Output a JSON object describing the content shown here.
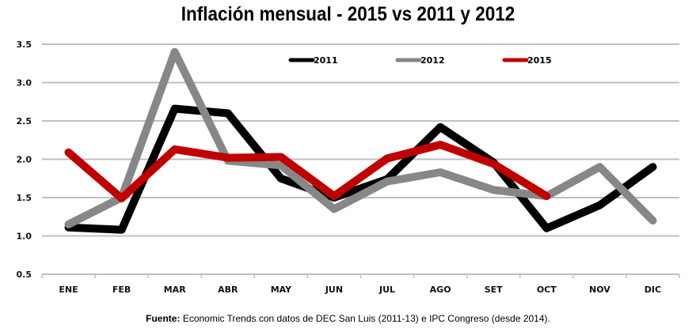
{
  "chart_data": {
    "type": "line",
    "title": "Inflación mensual - 2015 vs 2011 y 2012",
    "xlabel": "",
    "ylabel": "",
    "categories": [
      "ENE",
      "FEB",
      "MAR",
      "ABR",
      "MAY",
      "JUN",
      "JUL",
      "AGO",
      "SET",
      "OCT",
      "NOV",
      "DIC"
    ],
    "ylim": [
      0.5,
      3.5
    ],
    "yticks": [
      "0.5",
      "1.0",
      "1.5",
      "2.0",
      "2.5",
      "3.0",
      "3.5"
    ],
    "ytick_values": [
      0.5,
      1.0,
      1.5,
      2.0,
      2.5,
      3.0,
      3.5
    ],
    "grid": true,
    "legend_position": "top-center",
    "series": [
      {
        "name": "2011",
        "color": "#000000",
        "values": [
          1.11,
          1.08,
          2.66,
          2.6,
          1.75,
          1.5,
          1.74,
          2.42,
          1.96,
          1.1,
          1.4,
          1.9
        ]
      },
      {
        "name": "2012",
        "color": "#878787",
        "values": [
          1.15,
          1.5,
          3.4,
          1.98,
          1.92,
          1.35,
          1.71,
          1.83,
          1.6,
          1.52,
          1.9,
          1.2
        ]
      },
      {
        "name": "2015",
        "color": "#c00000",
        "values": [
          2.09,
          1.49,
          2.13,
          2.02,
          2.03,
          1.52,
          2.01,
          2.19,
          1.94,
          1.52,
          null,
          null
        ]
      }
    ]
  },
  "source": {
    "label": "Fuente:",
    "text": " Economic Trends con datos de DEC San Luis (2011-13) e IPC Congreso (desde 2014)."
  }
}
